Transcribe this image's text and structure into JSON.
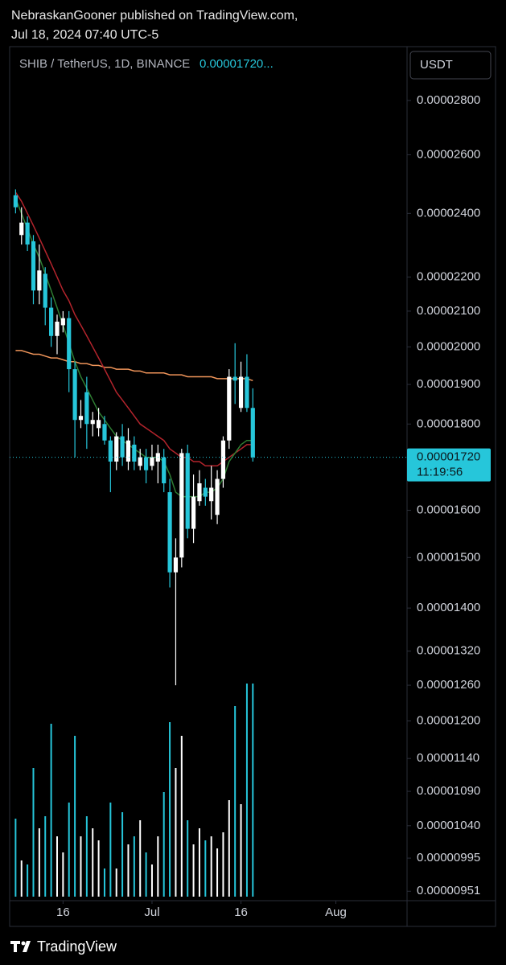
{
  "header": {
    "publisher": "NebraskanGooner published on TradingView.com,",
    "timestamp": "Jul 18, 2024 07:40 UTC-5"
  },
  "footer": {
    "brand": "TradingView"
  },
  "chart_data": {
    "type": "candlestick",
    "symbol": "SHIB / TetherUS, 1D, BINANCE",
    "symbol_price": "0.00001720...",
    "currency": "USDT",
    "x": [
      "2024-06-08",
      "2024-06-09",
      "2024-06-10",
      "2024-06-11",
      "2024-06-12",
      "2024-06-13",
      "2024-06-14",
      "2024-06-15",
      "2024-06-16",
      "2024-06-17",
      "2024-06-18",
      "2024-06-19",
      "2024-06-20",
      "2024-06-21",
      "2024-06-22",
      "2024-06-23",
      "2024-06-24",
      "2024-06-25",
      "2024-06-26",
      "2024-06-27",
      "2024-06-28",
      "2024-06-29",
      "2024-06-30",
      "2024-07-01",
      "2024-07-02",
      "2024-07-03",
      "2024-07-04",
      "2024-07-05",
      "2024-07-06",
      "2024-07-07",
      "2024-07-08",
      "2024-07-09",
      "2024-07-10",
      "2024-07-11",
      "2024-07-12",
      "2024-07-13",
      "2024-07-14",
      "2024-07-15",
      "2024-07-16",
      "2024-07-17",
      "2024-07-18"
    ],
    "open": [
      2.46e-05,
      2.33e-05,
      2.37e-05,
      2.31e-05,
      2.16e-05,
      2.21e-05,
      2.11e-05,
      2.03e-05,
      2.06e-05,
      2.08e-05,
      1.94e-05,
      1.81e-05,
      1.88e-05,
      1.8e-05,
      1.79e-05,
      1.8e-05,
      1.76e-05,
      1.71e-05,
      1.77e-05,
      1.71e-05,
      1.75e-05,
      1.7e-05,
      1.72e-05,
      1.7e-05,
      1.71e-05,
      1.72e-05,
      1.64e-05,
      1.47e-05,
      1.5e-05,
      1.73e-05,
      1.56e-05,
      1.62e-05,
      1.65e-05,
      1.62e-05,
      1.59e-05,
      1.67e-05,
      1.76e-05,
      1.92e-05,
      1.84e-05,
      1.92e-05,
      1.84e-05
    ],
    "high": [
      2.48e-05,
      2.42e-05,
      2.39e-05,
      2.33e-05,
      2.3e-05,
      2.23e-05,
      2.14e-05,
      2.09e-05,
      2.1e-05,
      2.1e-05,
      1.96e-05,
      1.86e-05,
      1.92e-05,
      1.83e-05,
      1.84e-05,
      1.82e-05,
      1.77e-05,
      1.78e-05,
      1.8e-05,
      1.79e-05,
      1.77e-05,
      1.74e-05,
      1.74e-05,
      1.75e-05,
      1.75e-05,
      1.74e-05,
      1.67e-05,
      1.54e-05,
      1.74e-05,
      1.75e-05,
      1.68e-05,
      1.69e-05,
      1.67e-05,
      1.7e-05,
      1.69e-05,
      1.77e-05,
      1.94e-05,
      2.01e-05,
      1.96e-05,
      1.98e-05,
      1.89e-05
    ],
    "low": [
      2.4e-05,
      2.3e-05,
      2.28e-05,
      2.12e-05,
      2.12e-05,
      2.06e-05,
      2e-05,
      1.98e-05,
      2.04e-05,
      1.88e-05,
      1.72e-05,
      1.79e-05,
      1.74e-05,
      1.77e-05,
      1.77e-05,
      1.75e-05,
      1.64e-05,
      1.69e-05,
      1.7e-05,
      1.69e-05,
      1.69e-05,
      1.69e-05,
      1.66e-05,
      1.69e-05,
      1.66e-05,
      1.64e-05,
      1.44e-05,
      1.26e-05,
      1.48e-05,
      1.54e-05,
      1.53e-05,
      1.61e-05,
      1.61e-05,
      1.58e-05,
      1.57e-05,
      1.65e-05,
      1.74e-05,
      1.85e-05,
      1.83e-05,
      1.83e-05,
      1.71e-05
    ],
    "close": [
      2.42e-05,
      2.37e-05,
      2.3e-05,
      2.16e-05,
      2.22e-05,
      2.11e-05,
      2.03e-05,
      2.07e-05,
      2.08e-05,
      1.94e-05,
      1.81e-05,
      1.82e-05,
      1.8e-05,
      1.81e-05,
      1.81e-05,
      1.76e-05,
      1.71e-05,
      1.77e-05,
      1.72e-05,
      1.76e-05,
      1.71e-05,
      1.72e-05,
      1.69e-05,
      1.72e-05,
      1.73e-05,
      1.66e-05,
      1.47e-05,
      1.5e-05,
      1.73e-05,
      1.56e-05,
      1.63e-05,
      1.66e-05,
      1.63e-05,
      1.65e-05,
      1.67e-05,
      1.76e-05,
      1.92e-05,
      1.91e-05,
      1.92e-05,
      1.84e-05,
      1.72e-05
    ],
    "up_color": "#ffffff",
    "down_color": "#26c6da",
    "volume": [
      97,
      45,
      40,
      160,
      85,
      100,
      215,
      75,
      55,
      117,
      200,
      75,
      100,
      85,
      70,
      35,
      117,
      35,
      105,
      65,
      75,
      95,
      55,
      40,
      75,
      130,
      217,
      160,
      200,
      95,
      65,
      85,
      70,
      75,
      60,
      80,
      120,
      237,
      115,
      265,
      265
    ],
    "lines": [
      {
        "color": "#f0955a",
        "values": [
          1.99e-05,
          1.99e-05,
          1.985e-05,
          1.98e-05,
          1.98e-05,
          1.975e-05,
          1.97e-05,
          1.97e-05,
          1.965e-05,
          1.96e-05,
          1.96e-05,
          1.955e-05,
          1.955e-05,
          1.95e-05,
          1.95e-05,
          1.945e-05,
          1.945e-05,
          1.94e-05,
          1.94e-05,
          1.94e-05,
          1.935e-05,
          1.935e-05,
          1.93e-05,
          1.93e-05,
          1.93e-05,
          1.93e-05,
          1.925e-05,
          1.925e-05,
          1.925e-05,
          1.92e-05,
          1.92e-05,
          1.92e-05,
          1.92e-05,
          1.92e-05,
          1.915e-05,
          1.915e-05,
          1.915e-05,
          1.915e-05,
          1.915e-05,
          1.915e-05,
          1.91e-05
        ]
      },
      {
        "color": "#b3242c",
        "values": [
          2.47e-05,
          2.44e-05,
          2.4e-05,
          2.36e-05,
          2.32e-05,
          2.28e-05,
          2.24e-05,
          2.2e-05,
          2.16e-05,
          2.13e-05,
          2.09e-05,
          2.06e-05,
          2.03e-05,
          2e-05,
          1.97e-05,
          1.94e-05,
          1.91e-05,
          1.88e-05,
          1.86e-05,
          1.84e-05,
          1.82e-05,
          1.8e-05,
          1.79e-05,
          1.78e-05,
          1.77e-05,
          1.76e-05,
          1.74e-05,
          1.73e-05,
          1.72e-05,
          1.72e-05,
          1.71e-05,
          1.71e-05,
          1.7e-05,
          1.7e-05,
          1.7e-05,
          1.71e-05,
          1.72e-05,
          1.73e-05,
          1.74e-05,
          1.75e-05,
          1.75e-05
        ]
      },
      {
        "color": "#2e7d32",
        "values": [
          2.45e-05,
          2.4e-05,
          2.35e-05,
          2.3e-05,
          2.26e-05,
          2.21e-05,
          2.16e-05,
          2.11e-05,
          2.06e-05,
          2.01e-05,
          1.96e-05,
          1.92e-05,
          1.89e-05,
          1.86e-05,
          1.83e-05,
          1.81e-05,
          1.79e-05,
          1.77e-05,
          1.76e-05,
          1.75e-05,
          1.74e-05,
          1.73e-05,
          1.72e-05,
          1.72e-05,
          1.72e-05,
          1.71e-05,
          1.68e-05,
          1.64e-05,
          1.63e-05,
          1.63e-05,
          1.63e-05,
          1.63e-05,
          1.64e-05,
          1.64e-05,
          1.65e-05,
          1.67e-05,
          1.71e-05,
          1.73e-05,
          1.75e-05,
          1.76e-05,
          1.76e-05
        ]
      }
    ],
    "ylim": [
      9.44e-06,
      3.007e-05
    ],
    "log_scale": true,
    "yticks": [
      {
        "value": 2.8e-05,
        "label": "0.00002800"
      },
      {
        "value": 2.6e-05,
        "label": "0.00002600"
      },
      {
        "value": 2.4e-05,
        "label": "0.00002400"
      },
      {
        "value": 2.2e-05,
        "label": "0.00002200"
      },
      {
        "value": 2.1e-05,
        "label": "0.00002100"
      },
      {
        "value": 2e-05,
        "label": "0.00002000"
      },
      {
        "value": 1.9e-05,
        "label": "0.00001900"
      },
      {
        "value": 1.8e-05,
        "label": "0.00001800"
      },
      {
        "value": 1.6e-05,
        "label": "0.00001600"
      },
      {
        "value": 1.5e-05,
        "label": "0.00001500"
      },
      {
        "value": 1.4e-05,
        "label": "0.00001400"
      },
      {
        "value": 1.32e-05,
        "label": "0.00001320"
      },
      {
        "value": 1.26e-05,
        "label": "0.00001260"
      },
      {
        "value": 1.2e-05,
        "label": "0.00001200"
      },
      {
        "value": 1.14e-05,
        "label": "0.00001140"
      },
      {
        "value": 1.09e-05,
        "label": "0.00001090"
      },
      {
        "value": 1.04e-05,
        "label": "0.00001040"
      },
      {
        "value": 9.95e-06,
        "label": "0.00000995"
      },
      {
        "value": 9.51e-06,
        "label": "0.00000951"
      }
    ],
    "xlim": [
      "2024-06-07",
      "2024-08-13"
    ],
    "xticks": [
      {
        "value": "2024-06-16",
        "label": "16"
      },
      {
        "value": "2024-07-01",
        "label": "Jul"
      },
      {
        "value": "2024-07-16",
        "label": "16"
      },
      {
        "value": "2024-08-01",
        "label": "Aug"
      }
    ],
    "last_price": {
      "value": 1.72e-05,
      "label": "0.00001720"
    },
    "countdown": "11:19:56"
  }
}
